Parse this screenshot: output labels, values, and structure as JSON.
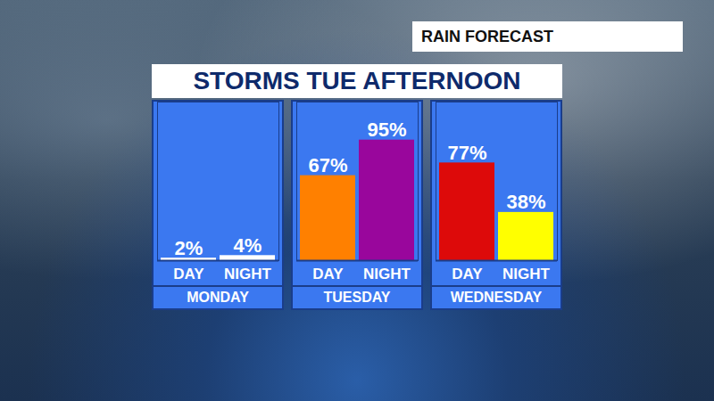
{
  "header": {
    "label": "RAIN FORECAST",
    "title": "STORMS TUE AFTERNOON"
  },
  "chart_data": [
    {
      "type": "bar",
      "xlabel": "MONDAY",
      "categories": [
        "DAY",
        "NIGHT"
      ],
      "values": [
        2,
        4
      ],
      "value_labels": [
        "2%",
        "4%"
      ],
      "colors": [
        "#ffffff",
        "#ffffff"
      ],
      "ylim": [
        0,
        125
      ],
      "data_labels": true,
      "tick_labels": "x"
    },
    {
      "type": "bar",
      "xlabel": "TUESDAY",
      "categories": [
        "DAY",
        "NIGHT"
      ],
      "values": [
        67,
        95
      ],
      "value_labels": [
        "67%",
        "95%"
      ],
      "colors": [
        "#ff8000",
        "#99069c"
      ],
      "ylim": [
        0,
        125
      ],
      "data_labels": true,
      "tick_labels": "x"
    },
    {
      "type": "bar",
      "xlabel": "WEDNESDAY",
      "categories": [
        "DAY",
        "NIGHT"
      ],
      "values": [
        77,
        38
      ],
      "value_labels": [
        "77%",
        "38%"
      ],
      "colors": [
        "#dd0a0a",
        "#ffff00"
      ],
      "ylim": [
        0,
        125
      ],
      "data_labels": true,
      "tick_labels": "x"
    }
  ]
}
